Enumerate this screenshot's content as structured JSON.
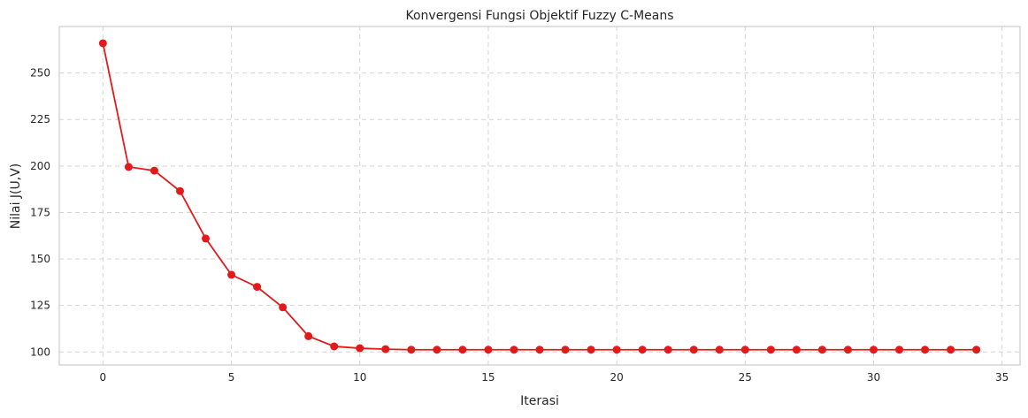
{
  "chart_data": {
    "type": "line",
    "title": "Konvergensi Fungsi Objektif Fuzzy C-Means",
    "xlabel": "Iterasi",
    "ylabel": "Nilai J(U,V)",
    "xlim": [
      -1.7,
      35.7
    ],
    "ylim": [
      93,
      275
    ],
    "xticks": [
      0,
      5,
      10,
      15,
      20,
      25,
      30,
      35
    ],
    "yticks": [
      100,
      125,
      150,
      175,
      200,
      225,
      250
    ],
    "grid": true,
    "line_color": "#e31a1c",
    "series": [
      {
        "x": [
          0,
          1,
          2,
          3,
          4,
          5,
          6,
          7,
          8,
          9,
          10,
          11,
          12,
          13,
          14,
          15,
          16,
          17,
          18,
          19,
          20,
          21,
          22,
          23,
          24,
          25,
          26,
          27,
          28,
          29,
          30,
          31,
          32,
          33,
          34
        ],
        "values": [
          266,
          199.5,
          197.5,
          186.5,
          161,
          141.5,
          135,
          124,
          108.5,
          103,
          102,
          101.5,
          101.2,
          101.2,
          101.2,
          101.2,
          101.2,
          101.2,
          101.2,
          101.2,
          101.2,
          101.2,
          101.2,
          101.2,
          101.2,
          101.2,
          101.2,
          101.2,
          101.2,
          101.2,
          101.2,
          101.2,
          101.2,
          101.2,
          101.2
        ]
      }
    ]
  }
}
